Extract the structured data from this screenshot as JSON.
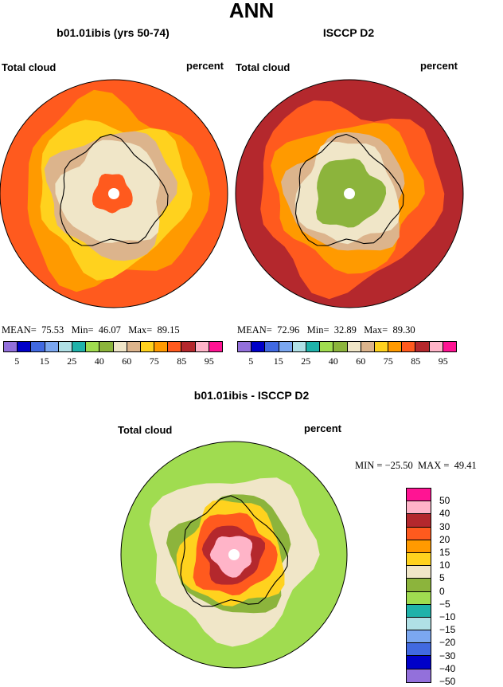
{
  "title": "ANN",
  "chart_data": [
    {
      "type": "heatmap",
      "projection": "south-polar-stereographic",
      "title": "b01.01ibis (yrs 50-74)",
      "variable": "Total cloud",
      "units": "percent",
      "stats": {
        "mean_label": "MEAN=",
        "mean": "75.53",
        "min_label": "Min=",
        "min": "46.07",
        "max_label": "Max=",
        "max": "89.15"
      },
      "rings": [
        {
          "level": 80,
          "color": "#ff5a1e"
        },
        {
          "level": 75,
          "color": "#ff9a00"
        },
        {
          "level": 70,
          "color": "#ffd21e"
        },
        {
          "level": 60,
          "color": "#dcb48c"
        },
        {
          "level": 50,
          "color": "#f0e6c8"
        },
        {
          "level": 80,
          "color": "#ff5a1e"
        }
      ]
    },
    {
      "type": "heatmap",
      "projection": "south-polar-stereographic",
      "title": "ISCCP D2",
      "variable": "Total cloud",
      "units": "percent",
      "stats": {
        "mean_label": "MEAN=",
        "mean": "72.96",
        "min_label": "Min=",
        "min": "32.89",
        "max_label": "Max=",
        "max": "89.30"
      },
      "rings": [
        {
          "level": 85,
          "color": "#b4282d"
        },
        {
          "level": 80,
          "color": "#ff5a1e"
        },
        {
          "level": 75,
          "color": "#ff9a00"
        },
        {
          "level": 60,
          "color": "#dcb48c"
        },
        {
          "level": 50,
          "color": "#f0e6c8"
        },
        {
          "level": 40,
          "color": "#8cb43c"
        }
      ]
    },
    {
      "type": "heatmap",
      "projection": "south-polar-stereographic",
      "title": "b01.01ibis - ISCCP D2",
      "variable": "Total cloud",
      "units": "percent",
      "stats": {
        "min_label": "MIN =",
        "min": "−25.50",
        "max_label": "MAX =",
        "max": "49.41"
      },
      "rings": [
        {
          "level": -10,
          "color": "#a0dc50"
        },
        {
          "level": 0,
          "color": "#f0e6c8"
        },
        {
          "level": -5,
          "color": "#8cb43c"
        },
        {
          "level": 10,
          "color": "#ffd21e"
        },
        {
          "level": 20,
          "color": "#ff5a1e"
        },
        {
          "level": 30,
          "color": "#b4282d"
        },
        {
          "level": 40,
          "color": "#ffb4c8"
        }
      ]
    }
  ],
  "abs_colorbar": {
    "colors": [
      "#9370db",
      "#0000c8",
      "#4169e1",
      "#7ba7f0",
      "#b0e0e6",
      "#20b2aa",
      "#a0dc50",
      "#8cb43c",
      "#f0e6c8",
      "#dcb48c",
      "#ffd21e",
      "#ff9a00",
      "#ff5a1e",
      "#b4282d",
      "#ffb4c8",
      "#ff1493"
    ],
    "labels": [
      "5",
      "15",
      "25",
      "40",
      "60",
      "75",
      "85",
      "95"
    ]
  },
  "diff_colorbar": {
    "colors": [
      "#ff1493",
      "#ffb4c8",
      "#b4282d",
      "#ff5a1e",
      "#ff9a00",
      "#ffd21e",
      "#f0e6c8",
      "#8cb43c",
      "#a0dc50",
      "#20b2aa",
      "#b0e0e6",
      "#7ba7f0",
      "#4169e1",
      "#0000c8",
      "#9370db"
    ],
    "labels": [
      "50",
      "40",
      "30",
      "20",
      "15",
      "10",
      "5",
      "0",
      "−5",
      "−10",
      "−15",
      "−20",
      "−30",
      "−40",
      "−50"
    ]
  }
}
